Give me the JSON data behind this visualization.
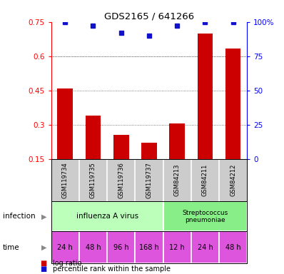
{
  "title": "GDS2165 / 641266",
  "samples": [
    "GSM119734",
    "GSM119735",
    "GSM119736",
    "GSM119737",
    "GSM84213",
    "GSM84211",
    "GSM84212"
  ],
  "log_ratio": [
    0.46,
    0.34,
    0.255,
    0.22,
    0.305,
    0.7,
    0.635
  ],
  "percentile_rank": [
    100,
    97,
    92,
    90,
    97,
    100,
    100
  ],
  "ylim_left": [
    0.15,
    0.75
  ],
  "ylim_right": [
    0,
    100
  ],
  "yticks_left": [
    0.15,
    0.3,
    0.45,
    0.6,
    0.75
  ],
  "ytick_labels_left": [
    "0.15",
    "0.3",
    "0.45",
    "0.6",
    "0.75"
  ],
  "yticks_right": [
    0,
    25,
    50,
    75,
    100
  ],
  "ytick_labels_right": [
    "0",
    "25",
    "50",
    "75",
    "100%"
  ],
  "bar_color": "#cc0000",
  "dot_color": "#1111cc",
  "infection_label_1": "influenza A virus",
  "infection_label_2": "Streptococcus\npneumoniae",
  "infection_color_1": "#bbffbb",
  "infection_color_2": "#88ee88",
  "time_labels": [
    "24 h",
    "48 h",
    "96 h",
    "168 h",
    "12 h",
    "24 h",
    "48 h"
  ],
  "time_color": "#dd55dd",
  "background_color": "#ffffff",
  "sample_box_color": "#cccccc",
  "dotted_line_color": "#555555",
  "legend_red_label": "log ratio",
  "legend_blue_label": "percentile rank within the sample"
}
